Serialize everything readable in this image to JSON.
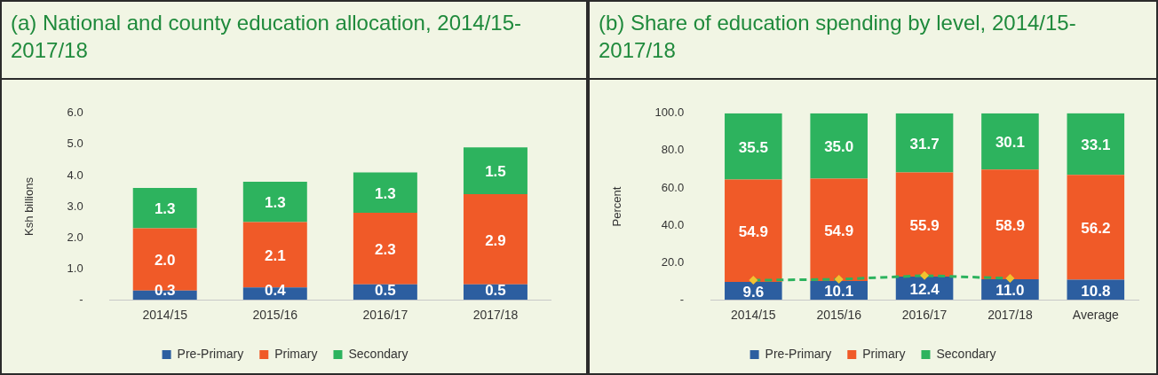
{
  "chart_data": [
    {
      "type": "bar",
      "title": "(a) National and county education allocation, 2014/15-2017/18",
      "ylabel": "Ksh billions",
      "categories": [
        "2014/15",
        "2015/16",
        "2016/17",
        "2017/18"
      ],
      "stacked": true,
      "series": [
        {
          "name": "Pre-Primary",
          "color": "#2c5ea0",
          "values": [
            0.3,
            0.4,
            0.5,
            0.5
          ],
          "value_labels": [
            "0.3",
            "0.4",
            "0.5",
            "0.5"
          ]
        },
        {
          "name": "Primary",
          "color": "#f05a28",
          "values": [
            2.0,
            2.1,
            2.3,
            2.9
          ],
          "value_labels": [
            "2.0",
            "2.1",
            "2.3",
            "2.9"
          ]
        },
        {
          "name": "Secondary",
          "color": "#2db35e",
          "values": [
            1.3,
            1.3,
            1.3,
            1.5
          ],
          "value_labels": [
            "1.3",
            "1.3",
            "1.3",
            "1.5"
          ]
        }
      ],
      "ylim": [
        0,
        6
      ],
      "yticks": [
        {
          "value": 0,
          "label": "-"
        },
        {
          "value": 1,
          "label": "1.0"
        },
        {
          "value": 2,
          "label": "2.0"
        },
        {
          "value": 3,
          "label": "3.0"
        },
        {
          "value": 4,
          "label": "4.0"
        },
        {
          "value": 5,
          "label": "5.0"
        },
        {
          "value": 6,
          "label": "6.0"
        }
      ],
      "grid": false,
      "legend": "bottom"
    },
    {
      "type": "bar",
      "title": "(b) Share of education spending by level, 2014/15-2017/18",
      "ylabel": "Percent",
      "categories": [
        "2014/15",
        "2015/16",
        "2016/17",
        "2017/18",
        "Average"
      ],
      "stacked": true,
      "series": [
        {
          "name": "Pre-Primary",
          "color": "#2c5ea0",
          "values": [
            9.6,
            10.1,
            12.4,
            11.0,
            10.8
          ],
          "value_labels": [
            "9.6",
            "10.1",
            "12.4",
            "11.0",
            "10.8"
          ]
        },
        {
          "name": "Primary",
          "color": "#f05a28",
          "values": [
            54.9,
            54.9,
            55.9,
            58.9,
            56.2
          ],
          "value_labels": [
            "54.9",
            "54.9",
            "55.9",
            "58.9",
            "56.2"
          ]
        },
        {
          "name": "Secondary",
          "color": "#2db35e",
          "values": [
            35.5,
            35.0,
            31.7,
            30.1,
            33.1
          ],
          "value_labels": [
            "35.5",
            "35.0",
            "31.7",
            "30.1",
            "33.1"
          ]
        },
        {
          "type": "line",
          "color": "#2db35e",
          "values": [
            10.5,
            11,
            13,
            11.5,
            null
          ],
          "marker": "diamond",
          "line_style": "dashed"
        }
      ],
      "ylim": [
        0,
        100
      ],
      "yticks": [
        {
          "value": 0,
          "label": "-"
        },
        {
          "value": 20,
          "label": "20.0"
        },
        {
          "value": 40,
          "label": "40.0"
        },
        {
          "value": 60,
          "label": "60.0"
        },
        {
          "value": 80,
          "label": "80.0"
        },
        {
          "value": 100,
          "label": "100.0"
        }
      ],
      "grid": false,
      "legend": "bottom"
    }
  ]
}
